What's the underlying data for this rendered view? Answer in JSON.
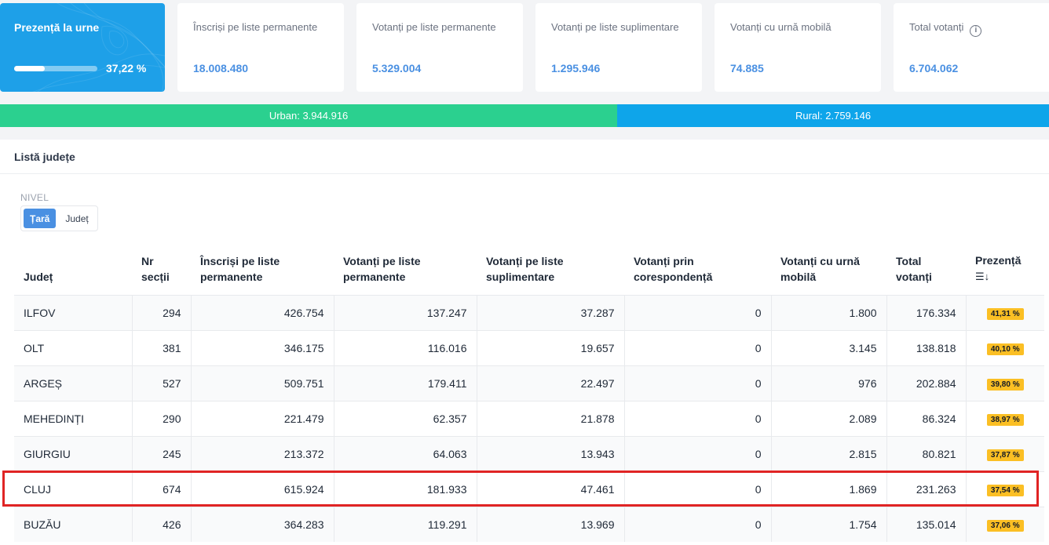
{
  "summary": {
    "prezenta": {
      "title": "Prezență la urne",
      "percent_label": "37,22 %",
      "progress": 0.3722
    },
    "cards": [
      {
        "title": "Înscriși pe liste permanente",
        "value": "18.008.480"
      },
      {
        "title": "Votanți pe liste permanente",
        "value": "5.329.004"
      },
      {
        "title": "Votanți pe liste suplimentare",
        "value": "1.295.946"
      },
      {
        "title": "Votanți cu urnă mobilă",
        "value": "74.885"
      },
      {
        "title": "Total votanți",
        "value": "6.704.062",
        "icon": "info-icon"
      }
    ]
  },
  "split": {
    "urban_label": "Urban: 3.944.916",
    "rural_label": "Rural: 2.759.146",
    "urban_fraction": 0.5884,
    "urban_color": "#2bd08f",
    "rural_color": "#0ea5ea"
  },
  "list": {
    "title": "Listă județe",
    "nivel_label": "NIVEL",
    "options": [
      "Țară",
      "Județ"
    ],
    "selected": "Țară"
  },
  "table": {
    "headers": [
      "Județ",
      "Nr secții",
      "Înscriși pe liste permanente",
      "Votanți pe liste permanente",
      "Votanți pe liste suplimentare",
      "Votanți prin corespondență",
      "Votanți cu urnă mobilă",
      "Total votanți",
      "Prezență"
    ],
    "sort_icon": "sort-descending-icon",
    "rows": [
      [
        "ILFOV",
        "294",
        "426.754",
        "137.247",
        "37.287",
        "0",
        "1.800",
        "176.334",
        "41,31 %"
      ],
      [
        "OLT",
        "381",
        "346.175",
        "116.016",
        "19.657",
        "0",
        "3.145",
        "138.818",
        "40,10 %"
      ],
      [
        "ARGEȘ",
        "527",
        "509.751",
        "179.411",
        "22.497",
        "0",
        "976",
        "202.884",
        "39,80 %"
      ],
      [
        "MEHEDINȚI",
        "290",
        "221.479",
        "62.357",
        "21.878",
        "0",
        "2.089",
        "86.324",
        "38,97 %"
      ],
      [
        "GIURGIU",
        "245",
        "213.372",
        "64.063",
        "13.943",
        "0",
        "2.815",
        "80.821",
        "37,87 %"
      ],
      [
        "CLUJ",
        "674",
        "615.924",
        "181.933",
        "47.461",
        "0",
        "1.869",
        "231.263",
        "37,54 %"
      ],
      [
        "BUZĂU",
        "426",
        "364.283",
        "119.291",
        "13.969",
        "0",
        "1.754",
        "135.014",
        "37,06 %"
      ]
    ],
    "highlighted_row": "CLUJ"
  },
  "colors": {
    "accent": "#4a90e2",
    "badge": "#fbbf24",
    "highlight": "#e02424",
    "primary_card": "#1ea0e8"
  }
}
